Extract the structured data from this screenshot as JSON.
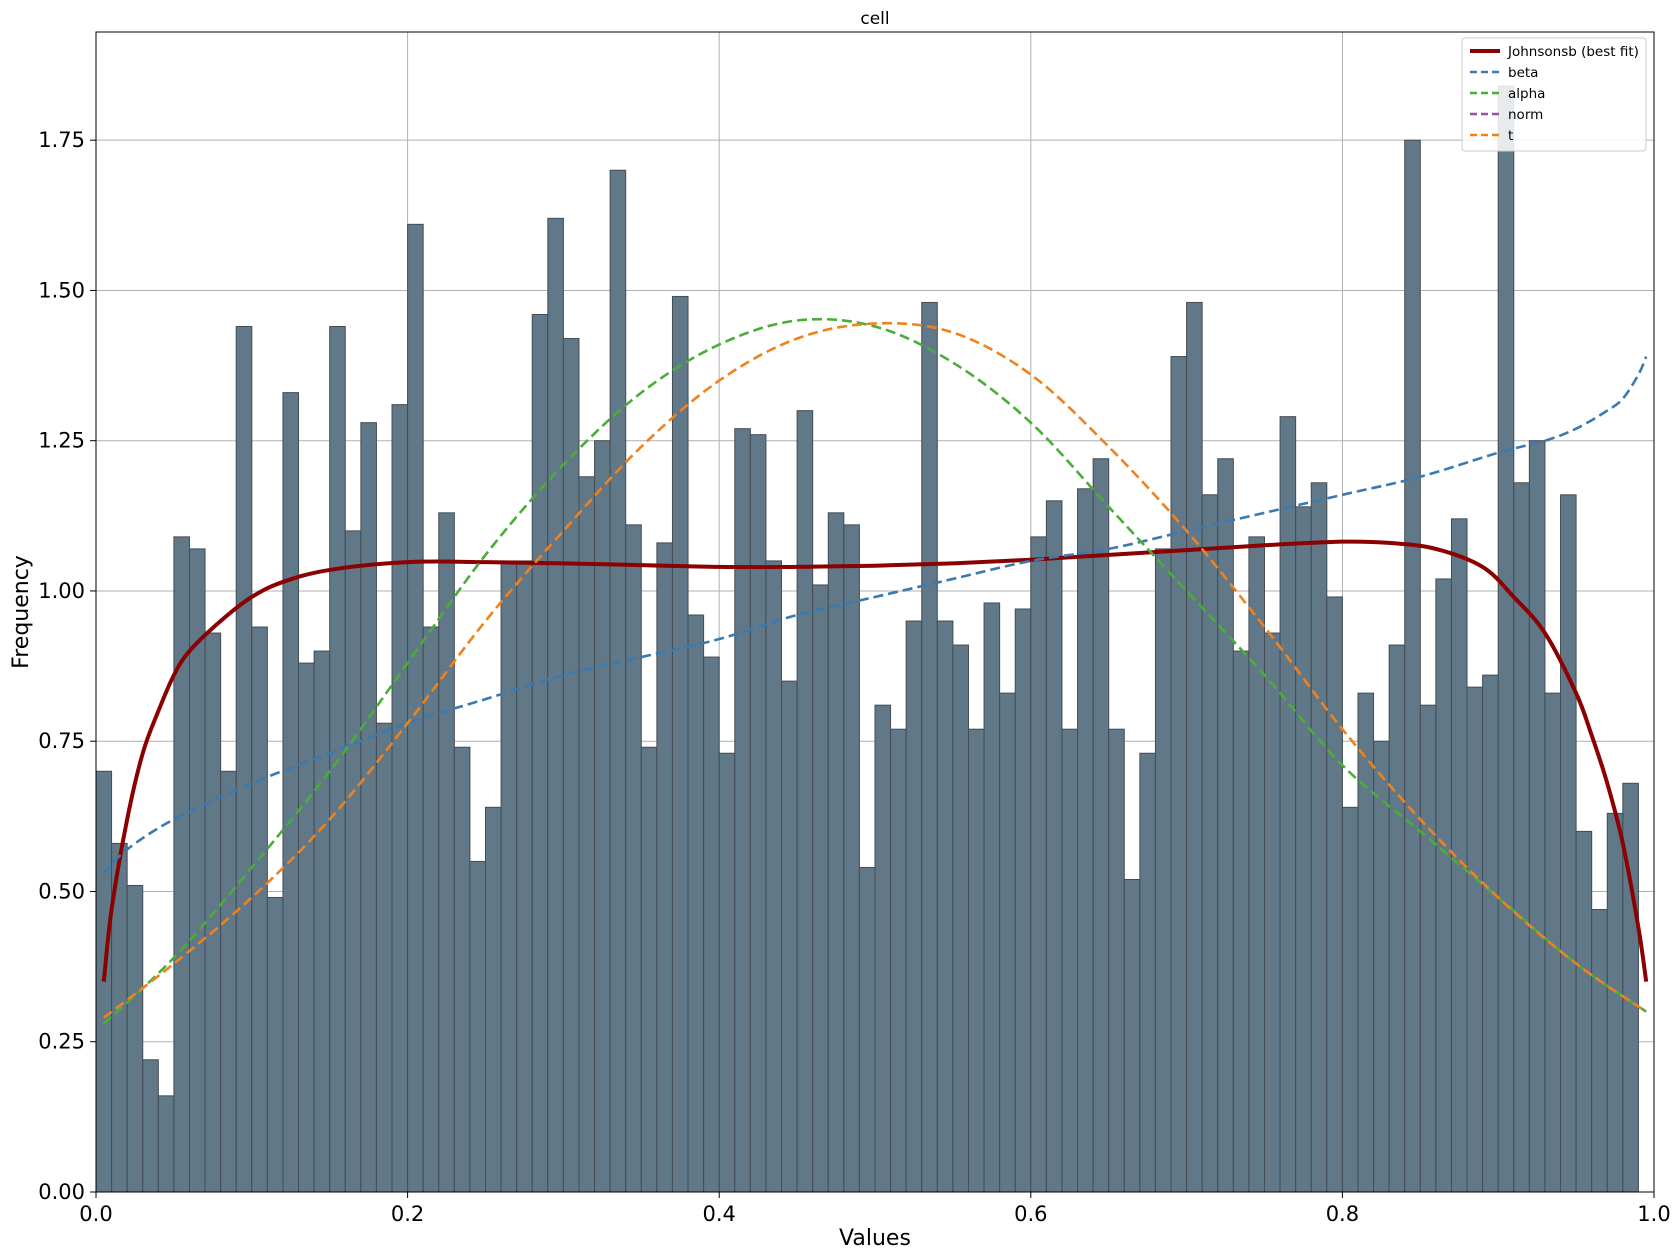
{
  "chart_data": {
    "type": "bar",
    "title": "cell",
    "xlabel": "Values",
    "ylabel": "Frequency",
    "xlim": [
      0.0,
      1.0
    ],
    "ylim": [
      0.0,
      1.93
    ],
    "grid": true,
    "legend_position": "top-right",
    "x_ticks": [
      0.0,
      0.2,
      0.4,
      0.6,
      0.8,
      1.0
    ],
    "x_tick_labels": [
      "0.0",
      "0.2",
      "0.4",
      "0.6",
      "0.8",
      "1.0"
    ],
    "y_ticks": [
      0.0,
      0.25,
      0.5,
      0.75,
      1.0,
      1.25,
      1.5,
      1.75
    ],
    "y_tick_labels": [
      "0.00",
      "0.25",
      "0.50",
      "0.75",
      "1.00",
      "1.25",
      "1.50",
      "1.75"
    ],
    "histogram": {
      "bin_start": 0.0,
      "bin_width": 0.01,
      "color": "#607888",
      "edge_color": "#444c54",
      "values": [
        0.7,
        0.58,
        0.51,
        0.22,
        0.16,
        1.09,
        1.07,
        0.93,
        0.7,
        1.44,
        0.94,
        0.49,
        1.33,
        0.88,
        0.9,
        1.44,
        1.1,
        1.28,
        0.78,
        1.31,
        1.61,
        0.94,
        1.13,
        0.74,
        0.55,
        0.64,
        1.05,
        1.05,
        1.46,
        1.62,
        1.42,
        1.19,
        1.25,
        1.7,
        1.11,
        0.74,
        1.08,
        1.49,
        0.96,
        0.89,
        0.73,
        1.27,
        1.26,
        1.05,
        0.85,
        1.3,
        1.01,
        1.13,
        1.11,
        0.54,
        0.81,
        0.77,
        0.95,
        1.48,
        0.95,
        0.91,
        0.77,
        0.98,
        0.83,
        0.97,
        1.09,
        1.15,
        0.77,
        1.17,
        1.22,
        0.77,
        0.52,
        0.73,
        1.07,
        1.39,
        1.48,
        1.16,
        1.22,
        0.9,
        1.09,
        0.93,
        1.29,
        1.14,
        1.18,
        0.99,
        0.64,
        0.83,
        0.75,
        0.91,
        1.75,
        0.81,
        1.02,
        1.12,
        0.84,
        0.86,
        1.84,
        1.18,
        1.25,
        0.83,
        1.16,
        0.6,
        0.47,
        0.63,
        0.68
      ]
    },
    "series": [
      {
        "name": "Johnsonsb (best fit)",
        "color": "#8b0000",
        "dash": "solid",
        "x": [
          0.005,
          0.01,
          0.02,
          0.03,
          0.04,
          0.05,
          0.06,
          0.08,
          0.1,
          0.12,
          0.15,
          0.2,
          0.25,
          0.3,
          0.35,
          0.4,
          0.45,
          0.5,
          0.55,
          0.6,
          0.65,
          0.7,
          0.75,
          0.8,
          0.83,
          0.86,
          0.89,
          0.91,
          0.93,
          0.95,
          0.96,
          0.97,
          0.98,
          0.99,
          0.995
        ],
        "y": [
          0.35,
          0.47,
          0.62,
          0.73,
          0.8,
          0.86,
          0.9,
          0.95,
          0.99,
          1.015,
          1.035,
          1.048,
          1.048,
          1.046,
          1.043,
          1.04,
          1.04,
          1.042,
          1.046,
          1.052,
          1.06,
          1.068,
          1.076,
          1.082,
          1.08,
          1.07,
          1.04,
          0.99,
          0.93,
          0.83,
          0.76,
          0.68,
          0.58,
          0.44,
          0.35
        ]
      },
      {
        "name": "beta",
        "color": "#3a7ab0",
        "dash": "dashed",
        "x": [
          0.005,
          0.02,
          0.05,
          0.1,
          0.15,
          0.2,
          0.25,
          0.3,
          0.35,
          0.4,
          0.45,
          0.5,
          0.55,
          0.6,
          0.65,
          0.7,
          0.75,
          0.8,
          0.85,
          0.9,
          0.93,
          0.95,
          0.97,
          0.98,
          0.99,
          0.995
        ],
        "y": [
          0.53,
          0.57,
          0.62,
          0.68,
          0.73,
          0.78,
          0.82,
          0.86,
          0.89,
          0.92,
          0.96,
          0.99,
          1.02,
          1.05,
          1.07,
          1.1,
          1.13,
          1.16,
          1.19,
          1.23,
          1.25,
          1.27,
          1.3,
          1.32,
          1.36,
          1.39
        ]
      },
      {
        "name": "alpha",
        "color": "#4aad3a",
        "dash": "dashed",
        "x": [
          0.005,
          0.05,
          0.1,
          0.15,
          0.2,
          0.25,
          0.3,
          0.35,
          0.4,
          0.45,
          0.5,
          0.55,
          0.6,
          0.65,
          0.7,
          0.75,
          0.8,
          0.85,
          0.9,
          0.95,
          0.995
        ],
        "y": [
          0.28,
          0.39,
          0.54,
          0.7,
          0.88,
          1.06,
          1.21,
          1.33,
          1.41,
          1.45,
          1.44,
          1.38,
          1.28,
          1.14,
          1.0,
          0.86,
          0.71,
          0.6,
          0.49,
          0.38,
          0.3
        ]
      },
      {
        "name": "norm",
        "color": "#9b4ea6",
        "dash": "dashed",
        "x": [],
        "y": []
      },
      {
        "name": "t",
        "color": "#f0821e",
        "dash": "dashed",
        "x": [
          0.005,
          0.05,
          0.1,
          0.15,
          0.2,
          0.25,
          0.3,
          0.35,
          0.4,
          0.45,
          0.5,
          0.55,
          0.6,
          0.65,
          0.7,
          0.75,
          0.8,
          0.85,
          0.9,
          0.95,
          0.995
        ],
        "y": [
          0.29,
          0.38,
          0.49,
          0.62,
          0.78,
          0.95,
          1.1,
          1.24,
          1.35,
          1.42,
          1.445,
          1.43,
          1.36,
          1.24,
          1.1,
          0.94,
          0.77,
          0.62,
          0.49,
          0.38,
          0.3
        ]
      }
    ]
  }
}
